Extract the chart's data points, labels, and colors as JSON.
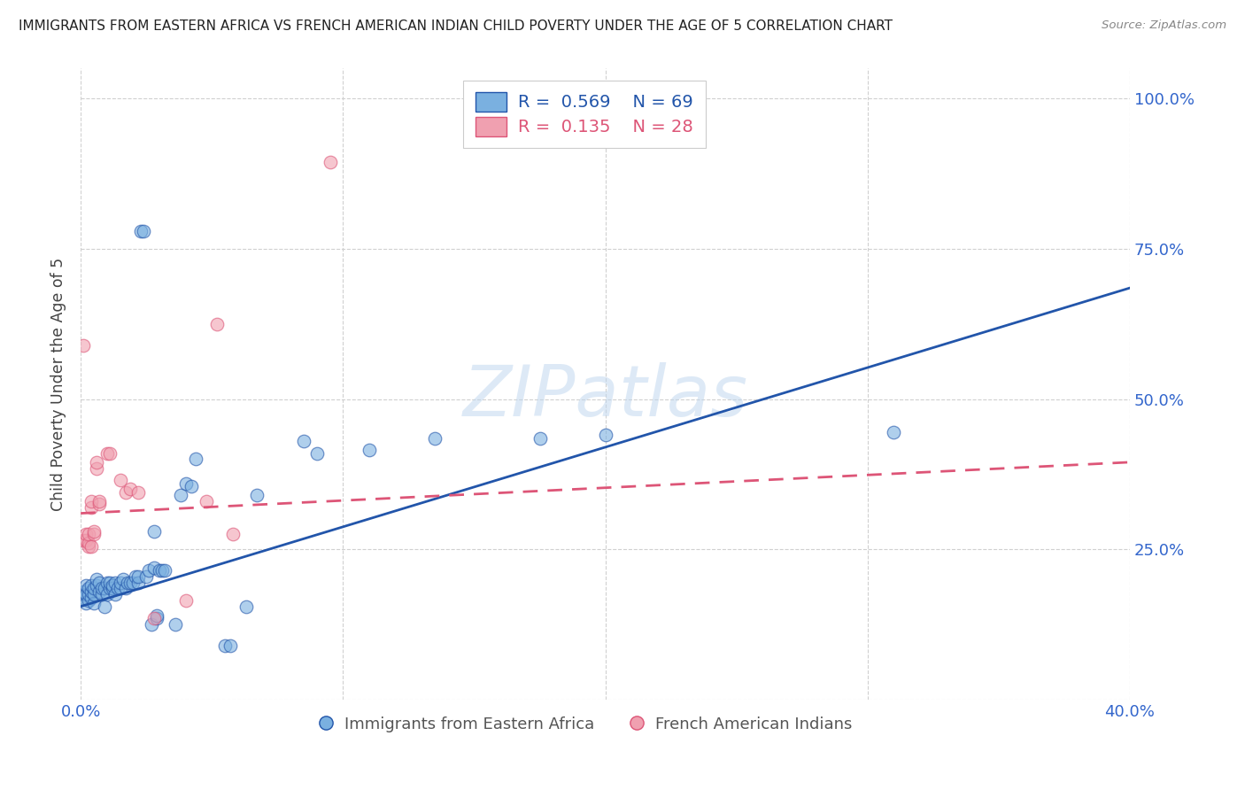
{
  "title": "IMMIGRANTS FROM EASTERN AFRICA VS FRENCH AMERICAN INDIAN CHILD POVERTY UNDER THE AGE OF 5 CORRELATION CHART",
  "source": "Source: ZipAtlas.com",
  "ylabel": "Child Poverty Under the Age of 5",
  "legend_labels": [
    "Immigrants from Eastern Africa",
    "French American Indians"
  ],
  "blue_R": "0.569",
  "blue_N": "69",
  "pink_R": "0.135",
  "pink_N": "28",
  "watermark": "ZIPatlas",
  "blue_color": "#7ab0e0",
  "pink_color": "#f0a0b0",
  "blue_line_color": "#2255aa",
  "pink_line_color": "#dd5577",
  "blue_scatter": [
    [
      0.001,
      0.17
    ],
    [
      0.001,
      0.18
    ],
    [
      0.002,
      0.16
    ],
    [
      0.002,
      0.175
    ],
    [
      0.002,
      0.19
    ],
    [
      0.003,
      0.165
    ],
    [
      0.003,
      0.175
    ],
    [
      0.003,
      0.185
    ],
    [
      0.004,
      0.17
    ],
    [
      0.004,
      0.18
    ],
    [
      0.004,
      0.19
    ],
    [
      0.005,
      0.16
    ],
    [
      0.005,
      0.175
    ],
    [
      0.005,
      0.185
    ],
    [
      0.006,
      0.19
    ],
    [
      0.006,
      0.2
    ],
    [
      0.007,
      0.18
    ],
    [
      0.007,
      0.195
    ],
    [
      0.008,
      0.175
    ],
    [
      0.008,
      0.185
    ],
    [
      0.009,
      0.155
    ],
    [
      0.009,
      0.185
    ],
    [
      0.01,
      0.175
    ],
    [
      0.01,
      0.195
    ],
    [
      0.011,
      0.185
    ],
    [
      0.011,
      0.195
    ],
    [
      0.012,
      0.185
    ],
    [
      0.012,
      0.19
    ],
    [
      0.013,
      0.175
    ],
    [
      0.013,
      0.195
    ],
    [
      0.014,
      0.185
    ],
    [
      0.015,
      0.185
    ],
    [
      0.015,
      0.195
    ],
    [
      0.016,
      0.2
    ],
    [
      0.017,
      0.185
    ],
    [
      0.018,
      0.195
    ],
    [
      0.019,
      0.195
    ],
    [
      0.02,
      0.195
    ],
    [
      0.021,
      0.205
    ],
    [
      0.022,
      0.195
    ],
    [
      0.022,
      0.205
    ],
    [
      0.023,
      0.78
    ],
    [
      0.024,
      0.78
    ],
    [
      0.025,
      0.205
    ],
    [
      0.026,
      0.215
    ],
    [
      0.027,
      0.125
    ],
    [
      0.028,
      0.28
    ],
    [
      0.028,
      0.22
    ],
    [
      0.029,
      0.135
    ],
    [
      0.029,
      0.14
    ],
    [
      0.03,
      0.215
    ],
    [
      0.031,
      0.215
    ],
    [
      0.032,
      0.215
    ],
    [
      0.036,
      0.125
    ],
    [
      0.038,
      0.34
    ],
    [
      0.04,
      0.36
    ],
    [
      0.042,
      0.355
    ],
    [
      0.044,
      0.4
    ],
    [
      0.055,
      0.09
    ],
    [
      0.057,
      0.09
    ],
    [
      0.063,
      0.155
    ],
    [
      0.067,
      0.34
    ],
    [
      0.085,
      0.43
    ],
    [
      0.09,
      0.41
    ],
    [
      0.11,
      0.415
    ],
    [
      0.135,
      0.435
    ],
    [
      0.175,
      0.435
    ],
    [
      0.2,
      0.44
    ],
    [
      0.31,
      0.445
    ]
  ],
  "pink_scatter": [
    [
      0.001,
      0.59
    ],
    [
      0.001,
      0.265
    ],
    [
      0.002,
      0.265
    ],
    [
      0.002,
      0.275
    ],
    [
      0.003,
      0.255
    ],
    [
      0.003,
      0.26
    ],
    [
      0.003,
      0.275
    ],
    [
      0.004,
      0.255
    ],
    [
      0.004,
      0.32
    ],
    [
      0.004,
      0.33
    ],
    [
      0.005,
      0.275
    ],
    [
      0.005,
      0.28
    ],
    [
      0.006,
      0.385
    ],
    [
      0.006,
      0.395
    ],
    [
      0.007,
      0.325
    ],
    [
      0.007,
      0.33
    ],
    [
      0.01,
      0.41
    ],
    [
      0.011,
      0.41
    ],
    [
      0.015,
      0.365
    ],
    [
      0.017,
      0.345
    ],
    [
      0.019,
      0.35
    ],
    [
      0.022,
      0.345
    ],
    [
      0.028,
      0.135
    ],
    [
      0.04,
      0.165
    ],
    [
      0.048,
      0.33
    ],
    [
      0.052,
      0.625
    ],
    [
      0.058,
      0.275
    ],
    [
      0.095,
      0.895
    ]
  ],
  "xlim": [
    0.0,
    0.4
  ],
  "ylim": [
    0.0,
    1.05
  ],
  "blue_line_x": [
    0.0,
    0.4
  ],
  "blue_line_y": [
    0.155,
    0.685
  ],
  "pink_line_x": [
    0.0,
    0.4
  ],
  "pink_line_y": [
    0.31,
    0.395
  ],
  "x_ticks": [
    0.0,
    0.1,
    0.2,
    0.3,
    0.4
  ],
  "y_ticks": [
    0.0,
    0.25,
    0.5,
    0.75,
    1.0
  ],
  "x_tick_display": [
    "0.0%",
    "",
    "",
    "",
    "40.0%"
  ],
  "y_tick_display": [
    "",
    "25.0%",
    "50.0%",
    "75.0%",
    "100.0%"
  ],
  "background_color": "#ffffff",
  "grid_color": "#d0d0d0",
  "title_color": "#222222",
  "axis_label_color": "#444444",
  "tick_color": "#3366cc"
}
